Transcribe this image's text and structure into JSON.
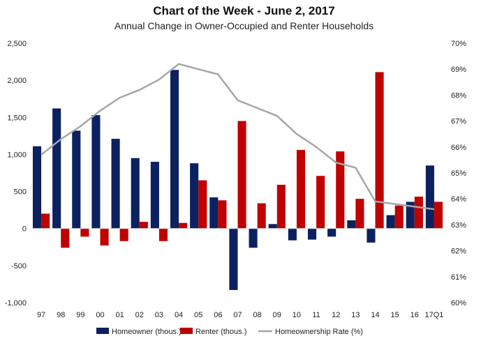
{
  "chart_data": {
    "type": "bar",
    "title": "Chart of the Week - June 2, 2017",
    "subtitle": "Annual Change in Owner-Occupied and Renter Households",
    "categories": [
      "97",
      "98",
      "99",
      "00",
      "01",
      "02",
      "03",
      "04",
      "05",
      "06",
      "07",
      "08",
      "09",
      "10",
      "11",
      "12",
      "13",
      "14",
      "15",
      "16",
      "17Q1"
    ],
    "series": [
      {
        "name": "Homeowner (thous.)",
        "kind": "bar",
        "axis": "left",
        "color": "#0b2160",
        "values": [
          1110,
          1620,
          1320,
          1530,
          1210,
          950,
          900,
          2140,
          880,
          420,
          -830,
          -260,
          60,
          -160,
          -150,
          -110,
          110,
          -190,
          180,
          360,
          850
        ]
      },
      {
        "name": "Renter (thous.)",
        "kind": "bar",
        "axis": "left",
        "color": "#c00000",
        "values": [
          200,
          -260,
          -110,
          -230,
          -170,
          90,
          -170,
          75,
          650,
          380,
          1450,
          340,
          590,
          1060,
          710,
          1040,
          400,
          2110,
          310,
          430,
          360
        ]
      },
      {
        "name": "Homeownership Rate (%)",
        "kind": "line",
        "axis": "right",
        "color": "#a6a6a6",
        "values": [
          65.7,
          66.3,
          66.8,
          67.4,
          67.9,
          68.2,
          68.6,
          69.2,
          69.0,
          68.8,
          67.8,
          67.5,
          67.2,
          66.5,
          66.0,
          65.4,
          65.2,
          63.9,
          63.8,
          63.7,
          63.6
        ]
      }
    ],
    "y_left": {
      "min": -1000,
      "max": 2500,
      "step": 500,
      "tick_labels": [
        "-1,000",
        "-500",
        "0",
        "500",
        "1,000",
        "1,500",
        "2,000",
        "2,500"
      ]
    },
    "y_right": {
      "min": 60,
      "max": 70,
      "step": 1,
      "tick_labels": [
        "60%",
        "61%",
        "62%",
        "63%",
        "64%",
        "65%",
        "66%",
        "67%",
        "68%",
        "69%",
        "70%"
      ]
    },
    "grid": false,
    "legend_position": "bottom"
  }
}
